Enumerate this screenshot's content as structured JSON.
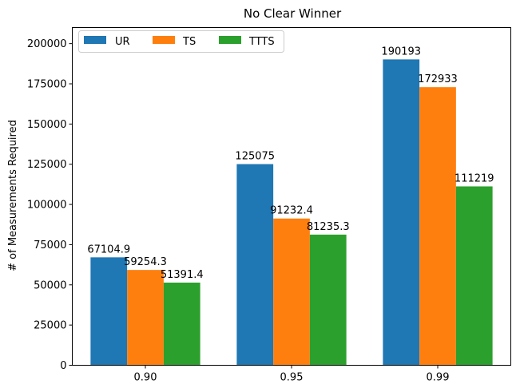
{
  "chart_data": {
    "type": "bar",
    "title": "No Clear Winner",
    "xlabel": "",
    "ylabel": "# of Measurements Required",
    "categories": [
      "0.90",
      "0.95",
      "0.99"
    ],
    "series": [
      {
        "name": "UR",
        "color": "#1f77b4",
        "values": [
          67104.9,
          125075,
          190193
        ],
        "labels": [
          "67104.9",
          "125075",
          "190193"
        ]
      },
      {
        "name": "TS",
        "color": "#ff7f0e",
        "values": [
          59254.3,
          91232.4,
          172933
        ],
        "labels": [
          "59254.3",
          "91232.4",
          "172933"
        ]
      },
      {
        "name": "TTTS",
        "color": "#2ca02c",
        "values": [
          51391.4,
          81235.3,
          111219
        ],
        "labels": [
          "51391.4",
          "81235.3",
          "111219"
        ]
      }
    ],
    "ylim": [
      0,
      210000
    ],
    "yticks": [
      0,
      25000,
      50000,
      75000,
      100000,
      125000,
      150000,
      175000,
      200000
    ],
    "ytick_labels": [
      "0",
      "25000",
      "50000",
      "75000",
      "100000",
      "125000",
      "150000",
      "175000",
      "200000"
    ],
    "legend_position": "top-left",
    "legend_columns": 3,
    "grid": false
  }
}
